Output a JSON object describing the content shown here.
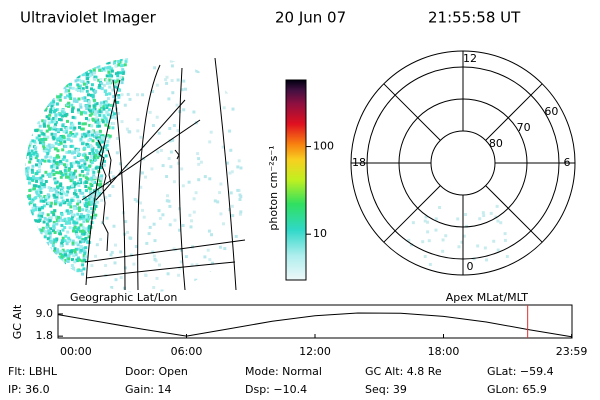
{
  "header": {
    "title": "Ultraviolet Imager",
    "date": "20 Jun 07",
    "time": "21:55:58 UT"
  },
  "colorbar": {
    "label": "photon cm⁻²s⁻¹",
    "log": true,
    "lim": [
      3,
      575
    ],
    "ticks": [
      10,
      100
    ]
  },
  "polar": {
    "rlim": [
      90,
      55
    ],
    "rings": [
      80,
      70,
      60
    ],
    "mlt": [
      12,
      18,
      6,
      0
    ]
  },
  "left_label": "Geographic Lat/Lon",
  "right_label": "Apex MLat/MLT",
  "altitude": {
    "type": "line",
    "ylabel": "GC Alt",
    "x": [
      0,
      2,
      4,
      6,
      8,
      10,
      12,
      14,
      16,
      18,
      20,
      22,
      23.98
    ],
    "values": [
      8.8,
      6.4,
      4.0,
      1.8,
      4.2,
      6.6,
      8.4,
      9.3,
      9.2,
      8.2,
      6.4,
      3.9,
      1.6
    ],
    "xlim": [
      0,
      24
    ],
    "ylim": [
      1.2,
      11.9
    ],
    "xticks": [
      {
        "value": 0,
        "label": "00:00"
      },
      {
        "value": 6,
        "label": "06:00"
      },
      {
        "value": 12,
        "label": "12:00"
      },
      {
        "value": 18,
        "label": "18:00"
      },
      {
        "value": 23.98,
        "label": "23:59"
      }
    ],
    "yticks": [
      {
        "value": 9,
        "label": "9.0"
      },
      {
        "value": 1.8,
        "label": "1.8"
      }
    ],
    "marker": 21.93,
    "marker_color": "#e03030"
  },
  "info": [
    [
      "Flt: LBHL",
      "Door: Open",
      "Mode: Normal",
      "GC Alt: 4.8 Re",
      "GLat: −59.4"
    ],
    [
      "IP: 36.0",
      "Gain: 14",
      "Dsp: −10.4",
      "Seq: 39",
      "GLon: 65.9"
    ]
  ]
}
